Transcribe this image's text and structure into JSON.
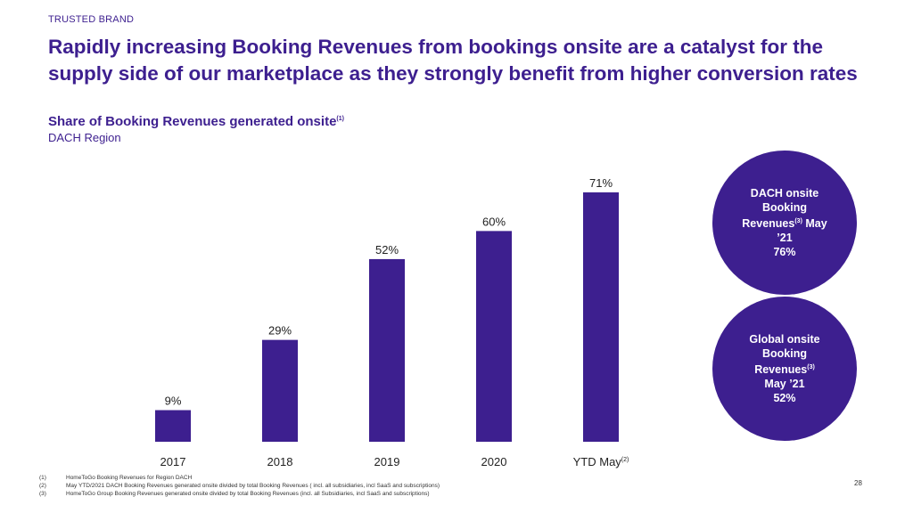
{
  "header": {
    "brand_label": "TRUSTED BRAND",
    "title": "Rapidly increasing Booking Revenues from bookings onsite are a catalyst for the supply side of our marketplace as they strongly benefit from higher conversion rates",
    "subtitle": "Share of Booking Revenues generated onsite",
    "subtitle_note": "(1)",
    "region": "DACH Region"
  },
  "chart_data": {
    "type": "bar",
    "title": "Share of Booking Revenues generated onsite",
    "subtitle": "DACH Region",
    "categories": [
      "2017",
      "2018",
      "2019",
      "2020",
      "YTD May"
    ],
    "category_notes": [
      "",
      "",
      "",
      "",
      "(2)"
    ],
    "values": [
      9,
      29,
      52,
      60,
      71
    ],
    "value_labels": [
      "9%",
      "29%",
      "52%",
      "60%",
      "71%"
    ],
    "unit": "%",
    "ylim": [
      0,
      71
    ],
    "grid": false,
    "bar_color": "#3d1f8f",
    "xlabel": "",
    "ylabel": ""
  },
  "callouts": [
    {
      "line1": "DACH onsite",
      "line2": "Booking",
      "line3a": "Revenues",
      "note": "(3)",
      "line3b": " May",
      "line4": "’21",
      "value": "76%"
    },
    {
      "line1": "Global onsite",
      "line2": "Booking",
      "line3a": "Revenues",
      "note": "(3)",
      "line3b": "",
      "line4": "May ’21",
      "value": "52%"
    }
  ],
  "footnotes": [
    {
      "num": "(1)",
      "text": "HomeToGo Booking Revenues for Region DACH"
    },
    {
      "num": "(2)",
      "text": "May YTD/2021 DACH Booking Revenues generated onsite divided by total Booking Revenues ( incl. all subsidiaries, incl SaaS and subscriptions)"
    },
    {
      "num": "(3)",
      "text": "HomeToGo Group Booking Revenues generated onsite divided by total Booking Revenues (incl. all Subsidiaries, incl SaaS and subscriptions)"
    }
  ],
  "page_number": "28",
  "colors": {
    "brand": "#3d1f8f"
  }
}
